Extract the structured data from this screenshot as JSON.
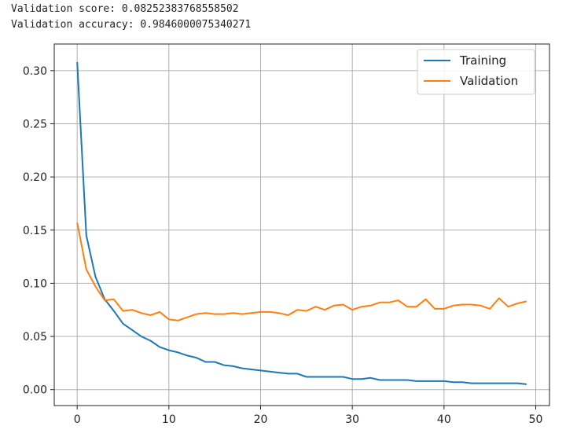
{
  "output": {
    "line1": "Validation score: 0.08252383768558502",
    "line2": "Validation accuracy: 0.9846000075340271"
  },
  "chart_data": {
    "type": "line",
    "title": "",
    "xlabel": "",
    "ylabel": "",
    "xlim": [
      -2.5,
      51.5
    ],
    "ylim": [
      -0.015,
      0.325
    ],
    "xticks": [
      0,
      10,
      20,
      30,
      40,
      50
    ],
    "yticks": [
      0.0,
      0.05,
      0.1,
      0.15,
      0.2,
      0.25,
      0.3
    ],
    "ytick_labels": [
      "0.00",
      "0.05",
      "0.10",
      "0.15",
      "0.20",
      "0.25",
      "0.30"
    ],
    "grid": true,
    "legend": "top-right",
    "x": [
      0,
      1,
      2,
      3,
      4,
      5,
      6,
      7,
      8,
      9,
      10,
      11,
      12,
      13,
      14,
      15,
      16,
      17,
      18,
      19,
      20,
      21,
      22,
      23,
      24,
      25,
      26,
      27,
      28,
      29,
      30,
      31,
      32,
      33,
      34,
      35,
      36,
      37,
      38,
      39,
      40,
      41,
      42,
      43,
      44,
      45,
      46,
      47,
      48,
      49
    ],
    "series": [
      {
        "name": "Training",
        "color": "#1f77b4",
        "values": [
          0.308,
          0.145,
          0.106,
          0.085,
          0.074,
          0.062,
          0.056,
          0.05,
          0.046,
          0.04,
          0.037,
          0.035,
          0.032,
          0.03,
          0.026,
          0.026,
          0.023,
          0.022,
          0.02,
          0.019,
          0.018,
          0.017,
          0.016,
          0.015,
          0.015,
          0.012,
          0.012,
          0.012,
          0.012,
          0.012,
          0.01,
          0.01,
          0.011,
          0.009,
          0.009,
          0.009,
          0.009,
          0.008,
          0.008,
          0.008,
          0.008,
          0.007,
          0.007,
          0.006,
          0.006,
          0.006,
          0.006,
          0.006,
          0.006,
          0.005
        ]
      },
      {
        "name": "Validation",
        "color": "#ff7f0e",
        "values": [
          0.157,
          0.113,
          0.097,
          0.084,
          0.085,
          0.074,
          0.075,
          0.072,
          0.07,
          0.073,
          0.066,
          0.065,
          0.068,
          0.071,
          0.072,
          0.071,
          0.071,
          0.072,
          0.071,
          0.072,
          0.073,
          0.073,
          0.072,
          0.07,
          0.075,
          0.074,
          0.078,
          0.075,
          0.079,
          0.08,
          0.075,
          0.078,
          0.079,
          0.082,
          0.082,
          0.084,
          0.078,
          0.078,
          0.085,
          0.076,
          0.076,
          0.079,
          0.08,
          0.08,
          0.079,
          0.076,
          0.086,
          0.078,
          0.081,
          0.083
        ]
      }
    ]
  }
}
